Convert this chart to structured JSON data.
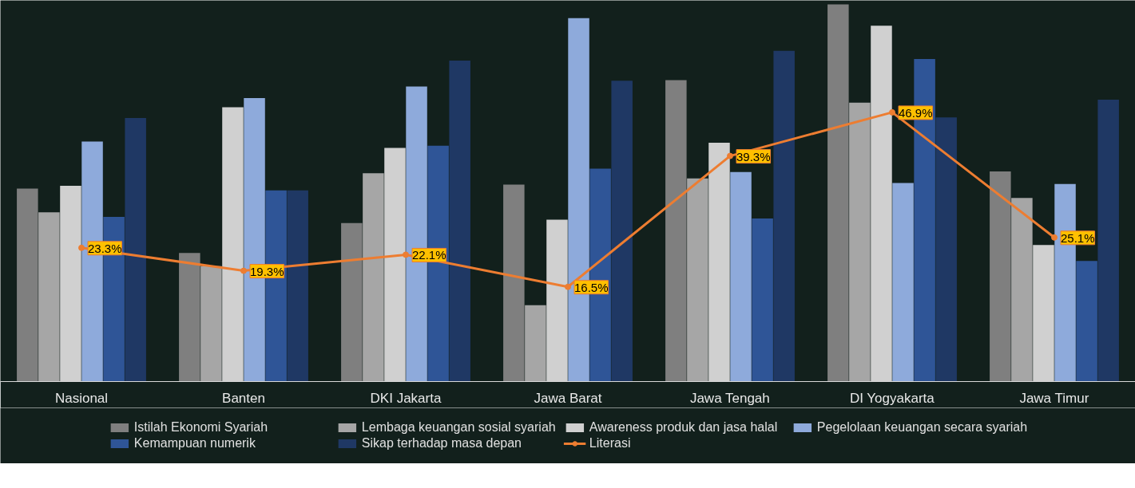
{
  "chart_data": {
    "type": "bar",
    "categories": [
      "Nasional",
      "Banten",
      "DKI Jakarta",
      "Jawa Barat",
      "Jawa Tengah",
      "DI Yogyakarta",
      "Jawa Timur"
    ],
    "ylim": [
      0,
      66.4
    ],
    "tick_labels": "x",
    "grid": false,
    "legend": "bottom",
    "marker": "circle",
    "line_style": "solid",
    "series": [
      {
        "name": "Istilah Ekonomi Syariah",
        "color": "#7f7f7f",
        "values": [
          33.6,
          22.4,
          27.6,
          34.3,
          52.5,
          65.7,
          36.6
        ]
      },
      {
        "name": "Lembaga keuangan sosial syariah",
        "color": "#a6a6a6",
        "values": [
          29.5,
          20.1,
          36.3,
          13.3,
          35.4,
          48.6,
          32.0
        ]
      },
      {
        "name": "Awareness produk dan jasa halal",
        "color": "#d0d0d0",
        "values": [
          34.1,
          47.8,
          40.7,
          28.2,
          41.6,
          62.0,
          23.8
        ]
      },
      {
        "name": "Pegelolaan keuangan secara syariah",
        "color": "#8eaadb",
        "values": [
          41.8,
          49.4,
          51.4,
          63.3,
          36.5,
          34.6,
          34.4
        ]
      },
      {
        "name": "Kemampuan numerik",
        "color": "#2f5597",
        "values": [
          28.7,
          33.3,
          41.1,
          37.1,
          28.4,
          56.2,
          21.0
        ]
      },
      {
        "name": "Sikap terhadap masa depan",
        "color": "#1f3864",
        "values": [
          45.9,
          33.3,
          55.9,
          52.4,
          57.6,
          46.0,
          49.1
        ]
      },
      {
        "name": "Literasi",
        "type": "line",
        "color": "#ed7d31",
        "values": [
          23.3,
          19.3,
          22.1,
          16.5,
          39.3,
          46.9,
          25.1
        ],
        "value_labels": [
          "23.3%",
          "19.3%",
          "22.1%",
          "16.5%",
          "39.3%",
          "46.9%",
          "25.1%"
        ]
      }
    ]
  }
}
